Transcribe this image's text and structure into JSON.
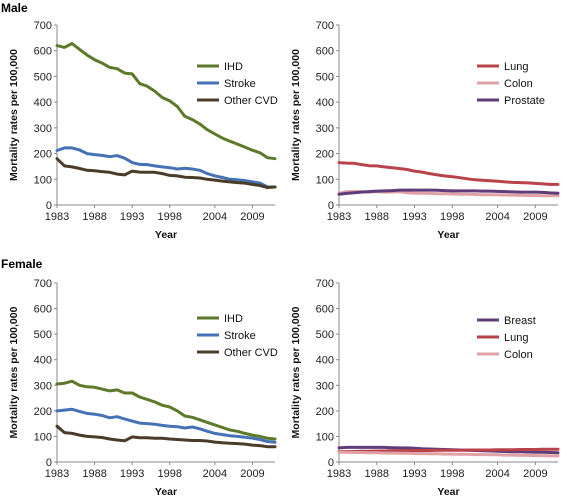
{
  "sections": {
    "male": "Male",
    "female": "Female"
  },
  "colors": {
    "ihd": "#5d7a2a",
    "stroke": "#4472b4",
    "other_cvd": "#4a3c28",
    "lung": "#b8434a",
    "colon": "#e0a2a6",
    "prostate": "#603c7a",
    "breast": "#603c7a"
  },
  "chart_data": [
    {
      "type": "line",
      "section": "Male",
      "ylabel": "Mortality rates per 100,000",
      "xlabel": "Year",
      "xlim": [
        1983,
        2012
      ],
      "ylim": [
        0,
        700
      ],
      "yticks": [
        "0",
        "100",
        "200",
        "300",
        "400",
        "500",
        "600",
        "700"
      ],
      "xticks": [
        "1983",
        "1988",
        "1993",
        "1998",
        "2004",
        "2009"
      ],
      "xtick_values": [
        1983,
        1988,
        1993,
        1998,
        2004,
        2009
      ],
      "legend_position": "middle-right",
      "x": [
        1983,
        1984,
        1985,
        1986,
        1987,
        1988,
        1989,
        1990,
        1991,
        1992,
        1993,
        1994,
        1995,
        1996,
        1997,
        1998,
        1999,
        2000,
        2001,
        2002,
        2003,
        2004,
        2005,
        2006,
        2007,
        2008,
        2009,
        2010,
        2011,
        2012
      ],
      "series": [
        {
          "name": "IHD",
          "color": "#5d7a2a",
          "values": [
            620,
            613,
            628,
            605,
            583,
            565,
            552,
            535,
            530,
            513,
            510,
            472,
            462,
            443,
            418,
            405,
            383,
            345,
            332,
            315,
            293,
            276,
            260,
            248,
            237,
            225,
            213,
            203,
            184,
            180
          ]
        },
        {
          "name": "Stroke",
          "color": "#4472b4",
          "values": [
            212,
            222,
            222,
            214,
            200,
            196,
            193,
            188,
            192,
            182,
            165,
            158,
            157,
            152,
            148,
            145,
            140,
            143,
            140,
            135,
            122,
            113,
            107,
            100,
            98,
            95,
            90,
            85,
            70,
            70
          ]
        },
        {
          "name": "Other CVD",
          "color": "#4a3c28",
          "values": [
            180,
            152,
            148,
            142,
            135,
            133,
            130,
            127,
            120,
            117,
            132,
            128,
            127,
            127,
            122,
            115,
            113,
            108,
            107,
            105,
            100,
            97,
            93,
            90,
            87,
            85,
            80,
            76,
            68,
            70
          ]
        }
      ]
    },
    {
      "type": "line",
      "section": "Male",
      "ylabel": "Mortality rates per 100,000",
      "xlabel": "Year",
      "xlim": [
        1983,
        2012
      ],
      "ylim": [
        0,
        700
      ],
      "yticks": [
        "0",
        "100",
        "200",
        "300",
        "400",
        "500",
        "600",
        "700"
      ],
      "xticks": [
        "1983",
        "1988",
        "1993",
        "1998",
        "2004",
        "2009"
      ],
      "xtick_values": [
        1983,
        1988,
        1993,
        1998,
        2004,
        2009
      ],
      "legend_position": "top-right",
      "x": [
        1983,
        1984,
        1985,
        1986,
        1987,
        1988,
        1989,
        1990,
        1991,
        1992,
        1993,
        1994,
        1995,
        1996,
        1997,
        1998,
        1999,
        2000,
        2001,
        2002,
        2003,
        2004,
        2005,
        2006,
        2007,
        2008,
        2009,
        2010,
        2011,
        2012
      ],
      "series": [
        {
          "name": "Lung",
          "color": "#b8434a",
          "values": [
            165,
            163,
            162,
            157,
            153,
            152,
            148,
            145,
            142,
            138,
            132,
            128,
            122,
            117,
            113,
            110,
            106,
            102,
            98,
            96,
            94,
            92,
            90,
            88,
            87,
            86,
            84,
            82,
            80,
            80
          ]
        },
        {
          "name": "Colon",
          "color": "#e0a2a6",
          "values": [
            45,
            52,
            52,
            52,
            50,
            52,
            50,
            50,
            52,
            48,
            46,
            46,
            45,
            44,
            44,
            43,
            42,
            42,
            41,
            40,
            40,
            40,
            39,
            38,
            38,
            37,
            37,
            36,
            36,
            36
          ]
        },
        {
          "name": "Prostate",
          "color": "#603c7a",
          "values": [
            42,
            45,
            48,
            50,
            52,
            54,
            55,
            56,
            58,
            58,
            58,
            58,
            58,
            57,
            56,
            55,
            55,
            55,
            55,
            54,
            54,
            53,
            52,
            51,
            50,
            50,
            50,
            49,
            47,
            46
          ]
        }
      ]
    },
    {
      "type": "line",
      "section": "Female",
      "ylabel": "Mortality rates per 100,000",
      "xlabel": "Year",
      "xlim": [
        1983,
        2012
      ],
      "ylim": [
        0,
        700
      ],
      "yticks": [
        "0",
        "100",
        "200",
        "300",
        "400",
        "500",
        "600",
        "700"
      ],
      "xticks": [
        "1983",
        "1988",
        "1993",
        "1998",
        "2004",
        "2009"
      ],
      "xtick_values": [
        1983,
        1988,
        1993,
        1998,
        2004,
        2009
      ],
      "legend_position": "middle-right",
      "x": [
        1983,
        1984,
        1985,
        1986,
        1987,
        1988,
        1989,
        1990,
        1991,
        1992,
        1993,
        1994,
        1995,
        1996,
        1997,
        1998,
        1999,
        2000,
        2001,
        2002,
        2003,
        2004,
        2005,
        2006,
        2007,
        2008,
        2009,
        2010,
        2011,
        2012
      ],
      "series": [
        {
          "name": "IHD",
          "color": "#5d7a2a",
          "values": [
            305,
            308,
            316,
            300,
            294,
            292,
            285,
            278,
            282,
            270,
            270,
            254,
            245,
            235,
            222,
            215,
            200,
            180,
            175,
            165,
            155,
            145,
            135,
            125,
            120,
            112,
            105,
            100,
            93,
            90
          ]
        },
        {
          "name": "Stroke",
          "color": "#4472b4",
          "values": [
            200,
            203,
            206,
            198,
            190,
            187,
            182,
            173,
            177,
            168,
            160,
            152,
            150,
            148,
            143,
            140,
            138,
            133,
            137,
            130,
            120,
            112,
            107,
            103,
            100,
            97,
            93,
            88,
            80,
            77
          ]
        },
        {
          "name": "Other CVD",
          "color": "#4a3c28",
          "values": [
            140,
            115,
            112,
            105,
            100,
            98,
            96,
            90,
            86,
            83,
            98,
            95,
            95,
            93,
            93,
            90,
            88,
            86,
            84,
            84,
            82,
            78,
            75,
            73,
            72,
            70,
            66,
            64,
            60,
            60
          ]
        }
      ]
    },
    {
      "type": "line",
      "section": "Female",
      "ylabel": "Mortality rates per 100,000",
      "xlabel": "Year",
      "xlim": [
        1983,
        2012
      ],
      "ylim": [
        0,
        700
      ],
      "yticks": [
        "0",
        "100",
        "200",
        "300",
        "400",
        "500",
        "600",
        "700"
      ],
      "xticks": [
        "1983",
        "1988",
        "1993",
        "1998",
        "2004",
        "2009"
      ],
      "xtick_values": [
        1983,
        1988,
        1993,
        1998,
        2004,
        2009
      ],
      "legend_position": "middle-right",
      "x": [
        1983,
        1984,
        1985,
        1986,
        1987,
        1988,
        1989,
        1990,
        1991,
        1992,
        1993,
        1994,
        1995,
        1996,
        1997,
        1998,
        1999,
        2000,
        2001,
        2002,
        2003,
        2004,
        2005,
        2006,
        2007,
        2008,
        2009,
        2010,
        2011,
        2012
      ],
      "series": [
        {
          "name": "Breast",
          "color": "#603c7a",
          "values": [
            55,
            57,
            57,
            57,
            57,
            57,
            57,
            56,
            55,
            55,
            54,
            52,
            51,
            50,
            49,
            48,
            47,
            46,
            45,
            44,
            43,
            42,
            41,
            40,
            40,
            39,
            38,
            38,
            37,
            36
          ]
        },
        {
          "name": "Lung",
          "color": "#b8434a",
          "values": [
            40,
            41,
            41,
            42,
            42,
            43,
            43,
            44,
            44,
            45,
            45,
            45,
            45,
            46,
            46,
            46,
            46,
            47,
            47,
            47,
            47,
            48,
            48,
            48,
            49,
            49,
            49,
            50,
            50,
            50
          ]
        },
        {
          "name": "Colon",
          "color": "#e0a2a6",
          "values": [
            38,
            38,
            37,
            37,
            36,
            36,
            35,
            35,
            34,
            34,
            33,
            33,
            32,
            32,
            31,
            31,
            30,
            30,
            29,
            29,
            28,
            28,
            27,
            27,
            26,
            26,
            25,
            25,
            24,
            24
          ]
        }
      ]
    }
  ]
}
